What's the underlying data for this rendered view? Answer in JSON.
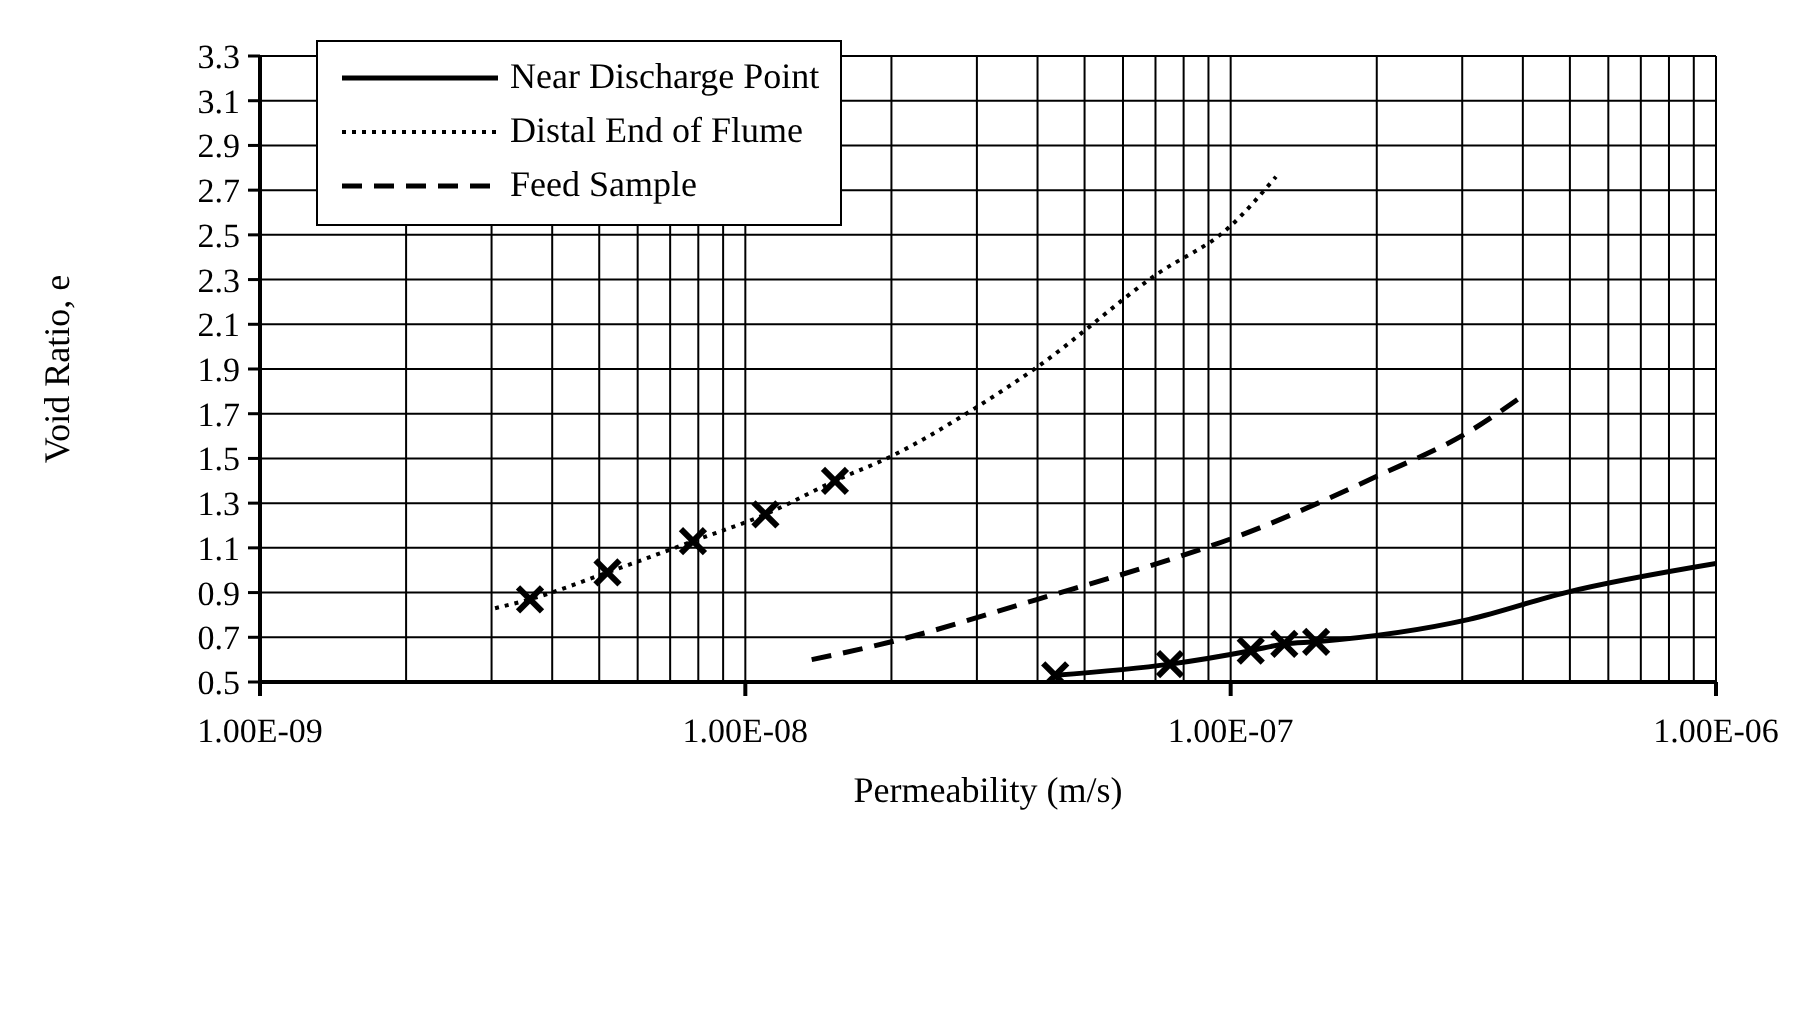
{
  "chart_data": {
    "type": "line",
    "xlabel": "Permeability (m/s)",
    "ylabel": "Void Ratio, e",
    "log": "x",
    "grid": true,
    "legend": "top left",
    "xlim": [
      1e-09,
      1e-06
    ],
    "xticks": [
      {
        "value": 1e-09,
        "label": "1.00E-09"
      },
      {
        "value": 2e-09,
        "label": null
      },
      {
        "value": 3e-09,
        "label": null
      },
      {
        "value": 4e-09,
        "label": null
      },
      {
        "value": 5e-09,
        "label": null
      },
      {
        "value": 6e-09,
        "label": null
      },
      {
        "value": 7e-09,
        "label": null
      },
      {
        "value": 8e-09,
        "label": null
      },
      {
        "value": 9e-09,
        "label": null
      },
      {
        "value": 1e-08,
        "label": "1.00E-08"
      },
      {
        "value": 2e-08,
        "label": null
      },
      {
        "value": 3e-08,
        "label": null
      },
      {
        "value": 4e-08,
        "label": null
      },
      {
        "value": 5e-08,
        "label": null
      },
      {
        "value": 6e-08,
        "label": null
      },
      {
        "value": 7e-08,
        "label": null
      },
      {
        "value": 8e-08,
        "label": null
      },
      {
        "value": 9e-08,
        "label": null
      },
      {
        "value": 1e-07,
        "label": "1.00E-07"
      },
      {
        "value": 2e-07,
        "label": null
      },
      {
        "value": 3e-07,
        "label": null
      },
      {
        "value": 4e-07,
        "label": null
      },
      {
        "value": 5e-07,
        "label": null
      },
      {
        "value": 6e-07,
        "label": null
      },
      {
        "value": 7e-07,
        "label": null
      },
      {
        "value": 8e-07,
        "label": null
      },
      {
        "value": 9e-07,
        "label": null
      },
      {
        "value": 1e-06,
        "label": "1.00E-06"
      }
    ],
    "ylim": [
      0.5,
      3.3
    ],
    "yticks": [
      0.5,
      0.7,
      0.9,
      1.1,
      1.3,
      1.5,
      1.7,
      1.9,
      2.1,
      2.3,
      2.5,
      2.7,
      2.9,
      3.1,
      3.3
    ],
    "series": [
      {
        "name": "Near Discharge Point",
        "color": "#000000",
        "line_style": "solid",
        "x": [
          4.35e-08,
          7.5e-08,
          1.1e-07,
          1.29e-07,
          1.5e-07,
          3.1e-07,
          4.9e-07,
          1e-06
        ],
        "values": [
          0.53,
          0.58,
          0.64,
          0.67,
          0.68,
          0.78,
          0.9,
          1.03
        ]
      },
      {
        "name": "Distal End of Flume",
        "color": "#000000",
        "line_style": "dotted",
        "x": [
          3.05e-09,
          3.6e-09,
          5.2e-09,
          7.8e-09,
          1.1e-08,
          1.53e-08,
          2e-08,
          2.9e-08,
          4e-08,
          7e-08,
          1e-07,
          1.24e-07
        ],
        "values": [
          0.83,
          0.87,
          0.99,
          1.13,
          1.25,
          1.4,
          1.51,
          1.71,
          1.91,
          2.32,
          2.54,
          2.76
        ]
      },
      {
        "name": "Feed Sample",
        "color": "#000000",
        "line_style": "dashed",
        "x": [
          1.37e-08,
          2e-08,
          4e-08,
          7.8e-08,
          1e-07,
          2e-07,
          3.1e-07,
          4e-07
        ],
        "values": [
          0.6,
          0.68,
          0.87,
          1.06,
          1.14,
          1.42,
          1.62,
          1.78
        ]
      },
      {
        "type": "scatter",
        "color": "#000000",
        "marker": "cross",
        "x": [
          4.35e-08,
          7.5e-08,
          1.1e-07,
          1.29e-07,
          1.5e-07
        ],
        "values": [
          0.53,
          0.58,
          0.64,
          0.67,
          0.68
        ]
      },
      {
        "type": "scatter",
        "color": "#000000",
        "marker": "cross",
        "x": [
          3.6e-09,
          5.2e-09,
          7.8e-09,
          1.1e-08,
          1.53e-08
        ],
        "values": [
          0.87,
          0.99,
          1.13,
          1.25,
          1.4
        ]
      }
    ]
  }
}
